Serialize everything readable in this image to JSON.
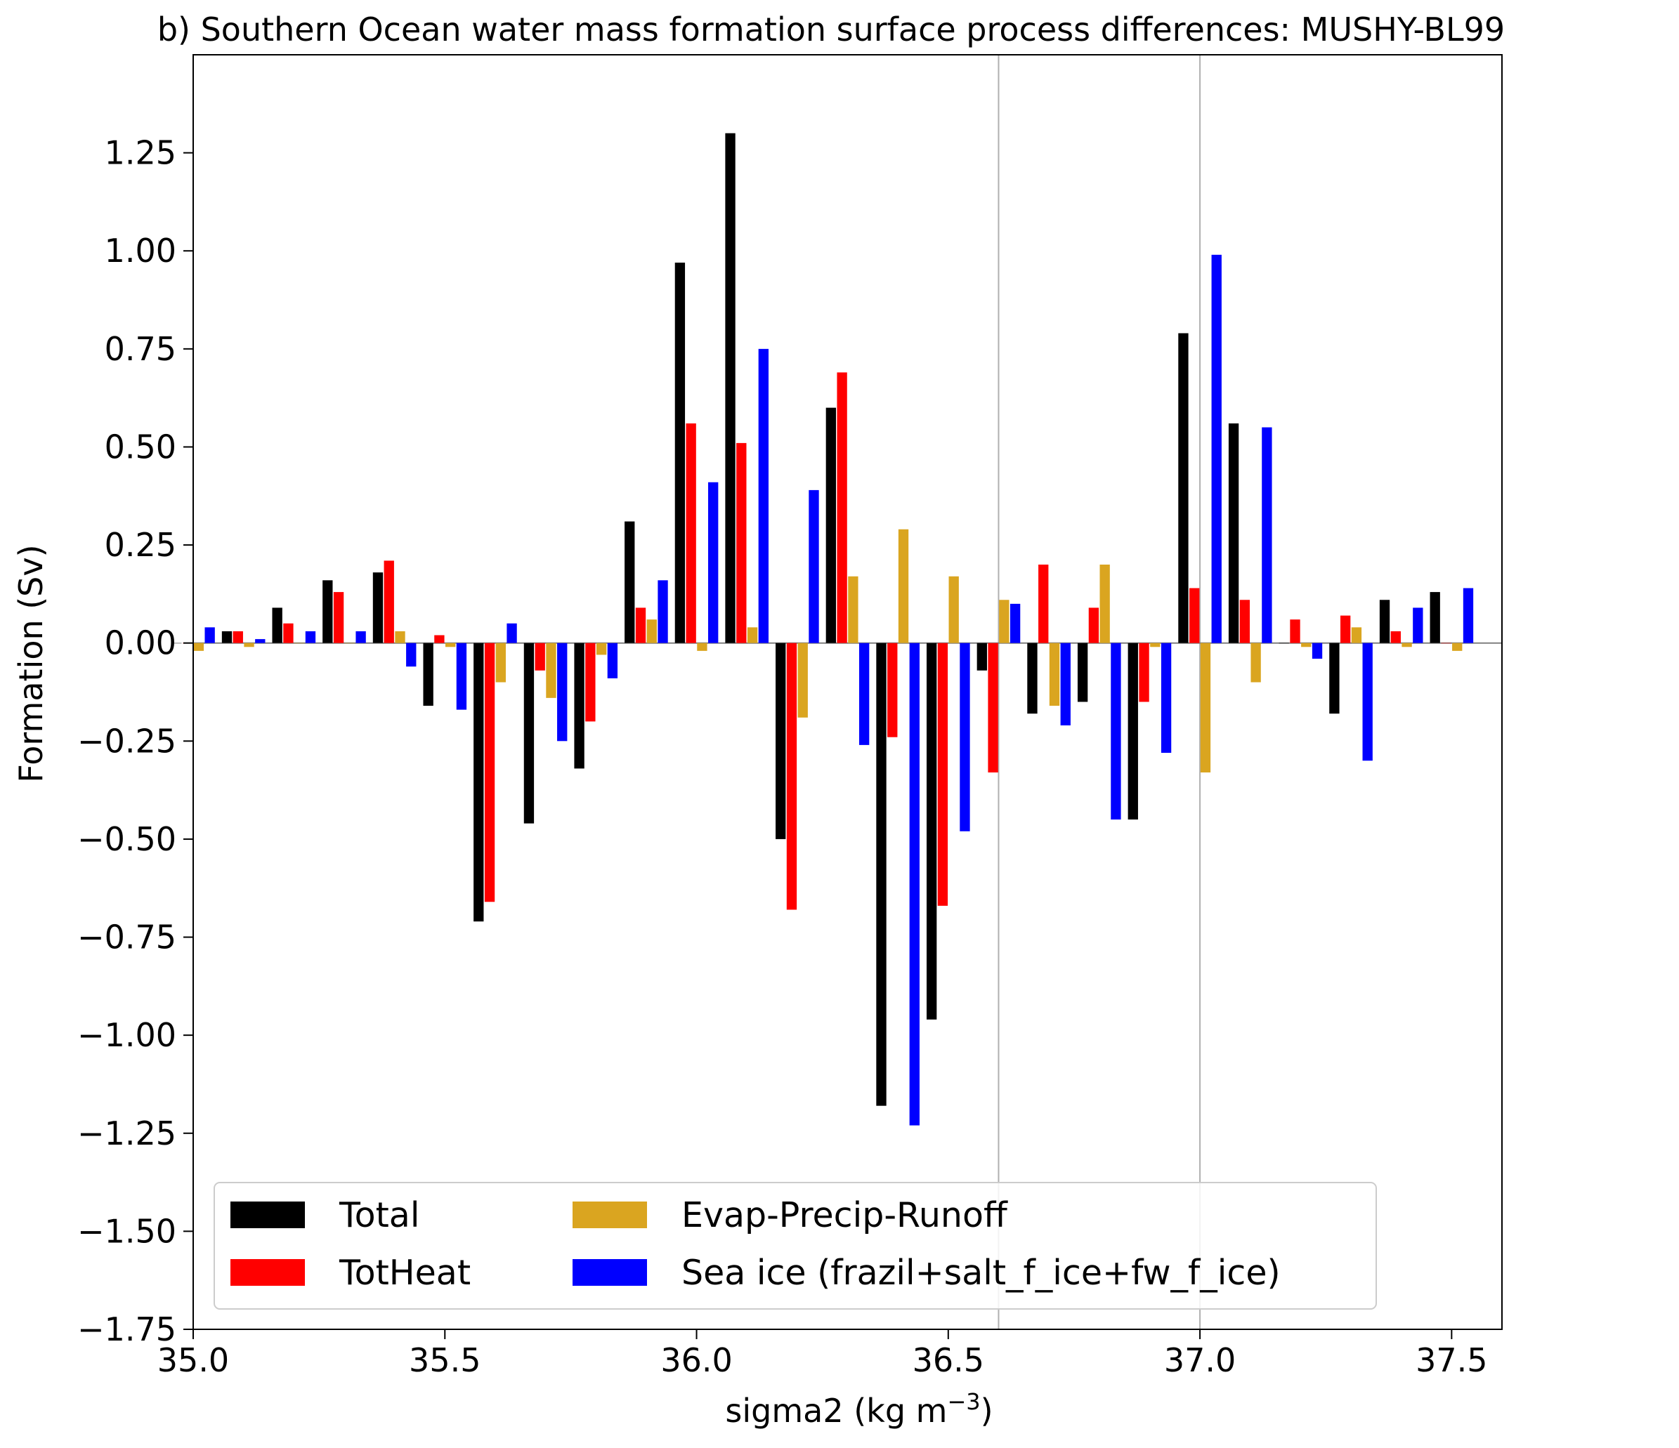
{
  "chart_data": {
    "type": "bar",
    "title": "b) Southern Ocean water mass formation surface process differences: MUSHY-BL99",
    "xlabel": "sigma2 (kg m",
    "xlabel_sup": "−3",
    "xlabel_close": ")",
    "ylabel": "Formation (Sv)",
    "xlim": [
      35.0,
      37.6
    ],
    "ylim": [
      -1.75,
      1.5
    ],
    "xticks": [
      "35.0",
      "35.5",
      "36.0",
      "36.5",
      "37.0",
      "37.5"
    ],
    "yticks": [
      "−1.75",
      "−1.50",
      "−1.25",
      "−1.00",
      "−0.75",
      "−0.50",
      "−0.25",
      "0.00",
      "0.25",
      "0.50",
      "0.75",
      "1.00",
      "1.25"
    ],
    "vlines": [
      36.6,
      37.0
    ],
    "grid": false,
    "legend_placement": "lower-left",
    "categories": [
      35.0,
      35.1,
      35.2,
      35.3,
      35.4,
      35.5,
      35.6,
      35.7,
      35.8,
      35.9,
      36.0,
      36.1,
      36.2,
      36.3,
      36.4,
      36.5,
      36.6,
      36.7,
      36.8,
      36.9,
      37.0,
      37.1,
      37.2,
      37.3,
      37.4,
      37.5
    ],
    "series": [
      {
        "name": "Total",
        "color": "#000000",
        "values": [
          0.0,
          0.03,
          0.09,
          0.16,
          0.18,
          -0.16,
          -0.71,
          -0.46,
          -0.32,
          0.31,
          0.97,
          1.3,
          -0.5,
          0.6,
          -1.18,
          -0.96,
          -0.07,
          -0.18,
          -0.15,
          -0.45,
          0.79,
          0.56,
          0.0,
          -0.18,
          0.11,
          0.13
        ]
      },
      {
        "name": "TotHeat",
        "color": "#ff0000",
        "values": [
          0.0,
          0.03,
          0.05,
          0.13,
          0.21,
          0.02,
          -0.66,
          -0.07,
          -0.2,
          0.09,
          0.56,
          0.51,
          -0.68,
          0.69,
          -0.24,
          -0.67,
          -0.33,
          0.2,
          0.09,
          -0.15,
          0.14,
          0.11,
          0.06,
          0.07,
          0.03,
          0.0
        ]
      },
      {
        "name": "Evap-Precip-Runoff",
        "color": "#daa520",
        "values": [
          -0.02,
          -0.01,
          0.0,
          0.0,
          0.03,
          -0.01,
          -0.1,
          -0.14,
          -0.03,
          0.06,
          -0.02,
          0.04,
          -0.19,
          0.17,
          0.29,
          0.17,
          0.11,
          -0.16,
          0.2,
          -0.01,
          -0.33,
          -0.1,
          -0.01,
          0.04,
          -0.01,
          -0.02
        ]
      },
      {
        "name": "Sea ice (frazil+salt_f_ice+fw_f_ice)",
        "color": "#0000ff",
        "values": [
          0.04,
          0.01,
          0.03,
          0.03,
          -0.06,
          -0.17,
          0.05,
          -0.25,
          -0.09,
          0.16,
          0.41,
          0.75,
          0.39,
          -0.26,
          -1.23,
          -0.48,
          0.1,
          -0.21,
          -0.45,
          -0.28,
          0.99,
          0.55,
          -0.04,
          -0.3,
          0.09,
          0.14
        ]
      }
    ]
  }
}
